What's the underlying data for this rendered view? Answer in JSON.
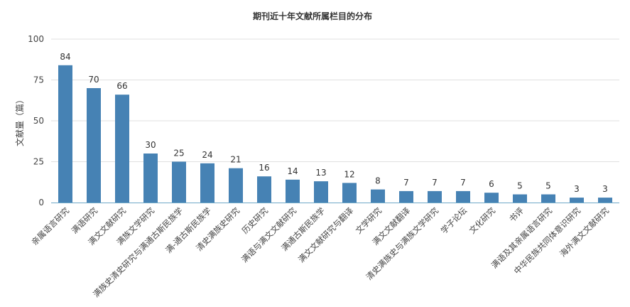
{
  "chart_data": {
    "type": "bar",
    "title": "期刊近十年文献所属栏目的分布",
    "ylabel": "文献量（篇）",
    "xlabel": "",
    "ylim": [
      0,
      100
    ],
    "yticks": [
      "0",
      "25",
      "50",
      "75",
      "100"
    ],
    "grid": true,
    "legend": "none",
    "colors": {
      "bar": "#4682b4",
      "grid": "#e0e0e0",
      "axis": "#6fa8c8",
      "text": "#333333"
    },
    "categories": [
      "亲属语言研究",
      "满语研究",
      "满文文献研究",
      "满族文学研究",
      "满族史清史研究与满通古斯民族学",
      "满-通古斯民族学",
      "清史满族史研究",
      "历史研究",
      "满语与满文文献研究",
      "满通古斯民族学",
      "满文文献研究与翻译",
      "文学研究",
      "满文文献翻译",
      "清史满族史与满族文学研究",
      "学子论坛",
      "文化研究",
      "书评",
      "满语及其亲属语言研究",
      "中华民族共同体意识研究",
      "海外满文文献研究"
    ],
    "values": [
      84,
      70,
      66,
      30,
      25,
      24,
      21,
      16,
      14,
      13,
      12,
      8,
      7,
      7,
      7,
      6,
      5,
      5,
      3,
      3
    ]
  }
}
